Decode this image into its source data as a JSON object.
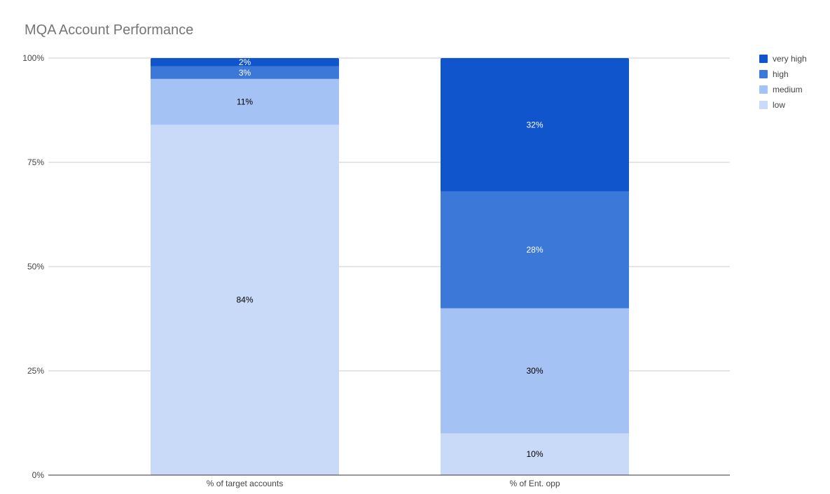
{
  "chart_data": {
    "type": "bar",
    "stacked": true,
    "title": "MQA Account Performance",
    "categories": [
      "% of target accounts",
      "% of Ent. opp"
    ],
    "series": [
      {
        "name": "low",
        "color": "#c9daf8",
        "label_color": "#000000",
        "values": [
          84,
          10
        ],
        "labels": [
          "84%",
          "10%"
        ]
      },
      {
        "name": "medium",
        "color": "#a4c2f4",
        "label_color": "#000000",
        "values": [
          11,
          30
        ],
        "labels": [
          "11%",
          "30%"
        ]
      },
      {
        "name": "high",
        "color": "#3c78d8",
        "label_color": "#ffffff",
        "values": [
          3,
          28
        ],
        "labels": [
          "3%",
          "28%"
        ]
      },
      {
        "name": "very high",
        "color": "#1155cc",
        "label_color": "#ffffff",
        "values": [
          2,
          32
        ],
        "labels": [
          "2%",
          "32%"
        ]
      }
    ],
    "legend_order": [
      "very high",
      "high",
      "medium",
      "low"
    ],
    "legend_position": "right-top",
    "y_ticks": [
      {
        "value": 0,
        "label": "0%"
      },
      {
        "value": 25,
        "label": "25%"
      },
      {
        "value": 50,
        "label": "50%"
      },
      {
        "value": 75,
        "label": "75%"
      },
      {
        "value": 100,
        "label": "100%"
      }
    ],
    "ylim": [
      0,
      100
    ],
    "grid": true,
    "xlabel": "",
    "ylabel": ""
  }
}
